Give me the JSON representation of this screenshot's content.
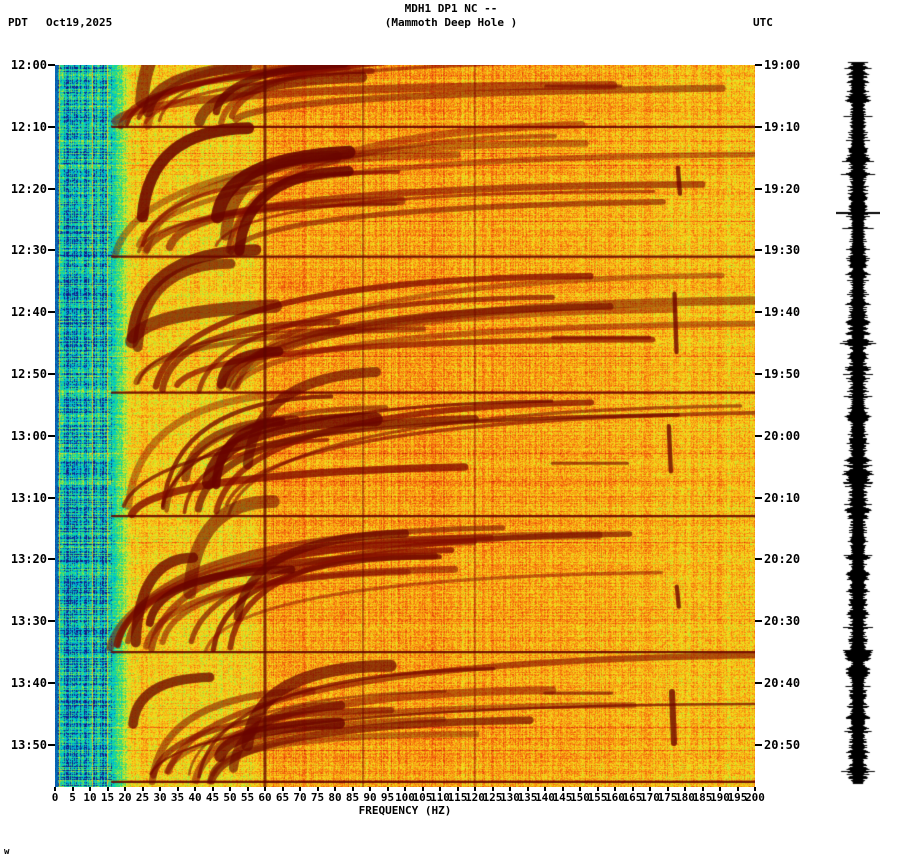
{
  "header": {
    "timezone_left": "PDT",
    "date": "Oct19,2025",
    "title_line1": "MDH1 DP1 NC --",
    "title_line2": "(Mammoth Deep Hole )",
    "timezone_right": "UTC"
  },
  "chart_data": {
    "type": "heatmap",
    "title": "MDH1 DP1 NC -- (Mammoth Deep Hole )",
    "xlabel": "FREQUENCY (HZ)",
    "x_range_hz": [
      0,
      200
    ],
    "x_tick_step_hz": 5,
    "x_ticks": [
      0,
      5,
      10,
      15,
      20,
      25,
      30,
      35,
      40,
      45,
      50,
      55,
      60,
      65,
      70,
      75,
      80,
      85,
      90,
      95,
      100,
      105,
      110,
      115,
      120,
      125,
      130,
      135,
      140,
      145,
      150,
      155,
      160,
      165,
      170,
      175,
      180,
      185,
      190,
      195,
      200
    ],
    "left_axis": {
      "timezone": "PDT",
      "ticks": [
        "12:00",
        "12:10",
        "12:20",
        "12:30",
        "12:40",
        "12:50",
        "13:00",
        "13:10",
        "13:20",
        "13:30",
        "13:40",
        "13:50"
      ]
    },
    "right_axis": {
      "timezone": "UTC",
      "ticks": [
        "19:00",
        "19:10",
        "19:20",
        "19:30",
        "19:40",
        "19:50",
        "20:00",
        "20:10",
        "20:20",
        "20:30",
        "20:40",
        "20:50"
      ]
    },
    "features": {
      "power_line_harmonics_hz": [
        60,
        88,
        120
      ],
      "event_onsets_pdt": [
        "12:10",
        "12:31",
        "12:53",
        "13:13",
        "13:35",
        "13:56"
      ],
      "low_frequency_quiet_band_hz": [
        0,
        16
      ],
      "description": "Repeating trains of dark-red upward-curving harmonic arcs between ~20 and 200 Hz; strongest energy 55-130 Hz with a persistent 60 Hz line; quiet cyan background below ~16 Hz."
    },
    "palette": [
      {
        "pos": 0.0,
        "color": "#141482"
      },
      {
        "pos": 0.1,
        "color": "#00AADC"
      },
      {
        "pos": 0.18,
        "color": "#00D7BE"
      },
      {
        "pos": 0.28,
        "color": "#3CDC6E"
      },
      {
        "pos": 0.38,
        "color": "#B4E632"
      },
      {
        "pos": 0.48,
        "color": "#F5E11E"
      },
      {
        "pos": 0.58,
        "color": "#FAAA14"
      },
      {
        "pos": 0.68,
        "color": "#F56E0F"
      },
      {
        "pos": 0.78,
        "color": "#E6370C"
      },
      {
        "pos": 0.88,
        "color": "#AF0F08"
      },
      {
        "pos": 1.0,
        "color": "#690000"
      }
    ],
    "event_color": "#640200",
    "trace_color": "#000000"
  },
  "side_trace": {
    "marker_time_utc": "19:24"
  },
  "corner_note": "w"
}
